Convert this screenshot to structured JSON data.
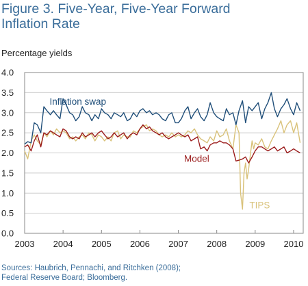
{
  "figure": {
    "title_line1": "Figure 3. Five-Year, Five-Year Forward",
    "title_line2": "Inflation Rate",
    "unit_label": "Percentage yields",
    "source_line1": "Sources: Haubrich, Pennachi, and Ritchken (2008);",
    "source_line2": "Federal Reserve Board; Bloomberg."
  },
  "chart_data": {
    "type": "line",
    "title": "Five-Year, Five-Year Forward Inflation Rate",
    "ylabel": "Percentage yields",
    "xlabel": "",
    "xlim": [
      2003,
      2010.25
    ],
    "ylim": [
      0,
      4.0
    ],
    "yticks": [
      "0.0",
      "0.5",
      "1.0",
      "1.5",
      "2.0",
      "2.5",
      "3.0",
      "3.5",
      "4.0"
    ],
    "xticks": [
      "2003",
      "2004",
      "2005",
      "2006",
      "2007",
      "2008",
      "2009",
      "2010"
    ],
    "grid": true,
    "colors": {
      "Inflation swap": "#1f4e79",
      "Model": "#9b1c1c",
      "TIPS": "#d9c27a",
      "grid": "#cccccc",
      "axis": "#888888"
    },
    "series": [
      {
        "name": "Inflation swap",
        "x": [
          2003.0,
          2003.08,
          2003.17,
          2003.25,
          2003.33,
          2003.42,
          2003.5,
          2003.58,
          2003.67,
          2003.75,
          2003.83,
          2003.92,
          2004.0,
          2004.08,
          2004.17,
          2004.25,
          2004.33,
          2004.42,
          2004.5,
          2004.58,
          2004.67,
          2004.75,
          2004.83,
          2004.92,
          2005.0,
          2005.08,
          2005.17,
          2005.25,
          2005.33,
          2005.42,
          2005.5,
          2005.58,
          2005.67,
          2005.75,
          2005.83,
          2005.92,
          2006.0,
          2006.08,
          2006.17,
          2006.25,
          2006.33,
          2006.42,
          2006.5,
          2006.58,
          2006.67,
          2006.75,
          2006.83,
          2006.92,
          2007.0,
          2007.08,
          2007.17,
          2007.25,
          2007.33,
          2007.42,
          2007.5,
          2007.58,
          2007.67,
          2007.75,
          2007.83,
          2007.92,
          2008.0,
          2008.08,
          2008.17,
          2008.25,
          2008.33,
          2008.42,
          2008.5,
          2008.58,
          2008.67,
          2008.75,
          2008.83,
          2008.92,
          2009.0,
          2009.08,
          2009.17,
          2009.25,
          2009.33,
          2009.42,
          2009.5,
          2009.58,
          2009.67,
          2009.75,
          2009.83,
          2009.92,
          2010.0,
          2010.08,
          2010.17
        ],
        "values": [
          2.22,
          2.28,
          2.25,
          2.75,
          2.7,
          2.5,
          3.15,
          3.05,
          2.95,
          3.05,
          2.95,
          2.85,
          3.35,
          3.2,
          3.0,
          2.95,
          2.8,
          2.9,
          3.15,
          3.0,
          2.95,
          2.8,
          2.95,
          2.85,
          3.1,
          3.0,
          2.95,
          2.85,
          3.0,
          2.95,
          2.9,
          3.0,
          2.8,
          2.85,
          3.0,
          2.9,
          3.05,
          3.1,
          3.0,
          3.05,
          2.95,
          3.0,
          2.95,
          2.85,
          2.8,
          2.95,
          3.0,
          2.75,
          2.75,
          2.85,
          3.05,
          3.15,
          2.85,
          3.0,
          3.1,
          2.9,
          2.8,
          2.95,
          3.25,
          3.0,
          2.9,
          2.85,
          2.8,
          3.1,
          2.95,
          3.0,
          2.7,
          3.05,
          3.3,
          2.75,
          3.15,
          3.05,
          3.15,
          3.25,
          2.85,
          3.1,
          3.25,
          3.5,
          3.1,
          2.9,
          3.1,
          3.2,
          3.35,
          3.1,
          2.95,
          3.25,
          3.05
        ]
      },
      {
        "name": "Model",
        "x": [
          2003.0,
          2003.08,
          2003.17,
          2003.25,
          2003.33,
          2003.42,
          2003.5,
          2003.58,
          2003.67,
          2003.75,
          2003.83,
          2003.92,
          2004.0,
          2004.08,
          2004.17,
          2004.25,
          2004.33,
          2004.42,
          2004.5,
          2004.58,
          2004.67,
          2004.75,
          2004.83,
          2004.92,
          2005.0,
          2005.08,
          2005.17,
          2005.25,
          2005.33,
          2005.42,
          2005.5,
          2005.58,
          2005.67,
          2005.75,
          2005.83,
          2005.92,
          2006.0,
          2006.08,
          2006.17,
          2006.25,
          2006.33,
          2006.42,
          2006.5,
          2006.58,
          2006.67,
          2006.75,
          2006.83,
          2006.92,
          2007.0,
          2007.08,
          2007.17,
          2007.25,
          2007.33,
          2007.42,
          2007.5,
          2007.58,
          2007.67,
          2007.75,
          2007.83,
          2007.92,
          2008.0,
          2008.08,
          2008.17,
          2008.25,
          2008.33,
          2008.42,
          2008.5,
          2008.58,
          2008.67,
          2008.75,
          2008.83,
          2008.92,
          2009.0,
          2009.08,
          2009.17,
          2009.25,
          2009.33,
          2009.42,
          2009.5,
          2009.58,
          2009.67,
          2009.75,
          2009.83,
          2009.92,
          2010.0,
          2010.08,
          2010.17
        ],
        "values": [
          2.15,
          2.2,
          2.05,
          2.3,
          2.45,
          2.15,
          2.5,
          2.45,
          2.55,
          2.5,
          2.45,
          2.4,
          2.6,
          2.55,
          2.4,
          2.35,
          2.4,
          2.35,
          2.5,
          2.4,
          2.45,
          2.5,
          2.4,
          2.5,
          2.55,
          2.45,
          2.35,
          2.4,
          2.5,
          2.4,
          2.45,
          2.5,
          2.35,
          2.45,
          2.5,
          2.45,
          2.6,
          2.7,
          2.6,
          2.65,
          2.55,
          2.5,
          2.45,
          2.5,
          2.4,
          2.35,
          2.4,
          2.45,
          2.5,
          2.45,
          2.4,
          2.45,
          2.3,
          2.35,
          2.4,
          2.1,
          2.15,
          2.05,
          2.2,
          2.25,
          2.25,
          2.3,
          2.25,
          2.25,
          2.2,
          2.1,
          1.8,
          1.82,
          1.85,
          1.9,
          1.75,
          1.9,
          2.05,
          2.15,
          2.15,
          2.1,
          2.05,
          2.1,
          2.15,
          2.05,
          2.1,
          2.15,
          2.0,
          2.05,
          2.1,
          2.05,
          2.0
        ]
      },
      {
        "name": "TIPS",
        "x": [
          2003.0,
          2003.08,
          2003.17,
          2003.25,
          2003.33,
          2003.42,
          2003.5,
          2003.58,
          2003.67,
          2003.75,
          2003.83,
          2003.92,
          2004.0,
          2004.08,
          2004.17,
          2004.25,
          2004.33,
          2004.42,
          2004.5,
          2004.58,
          2004.67,
          2004.75,
          2004.83,
          2004.92,
          2005.0,
          2005.08,
          2005.17,
          2005.25,
          2005.33,
          2005.42,
          2005.5,
          2005.58,
          2005.67,
          2005.75,
          2005.83,
          2005.92,
          2006.0,
          2006.08,
          2006.17,
          2006.25,
          2006.33,
          2006.42,
          2006.5,
          2006.58,
          2006.67,
          2006.75,
          2006.83,
          2006.92,
          2007.0,
          2007.08,
          2007.17,
          2007.25,
          2007.33,
          2007.42,
          2007.5,
          2007.58,
          2007.67,
          2007.75,
          2007.83,
          2007.92,
          2008.0,
          2008.08,
          2008.17,
          2008.25,
          2008.33,
          2008.42,
          2008.5,
          2008.58,
          2008.62,
          2008.67,
          2008.71,
          2008.75,
          2008.79,
          2008.83,
          2008.88,
          2008.92,
          2008.96,
          2009.0,
          2009.08,
          2009.17,
          2009.25,
          2009.33,
          2009.42,
          2009.5,
          2009.58,
          2009.67,
          2009.75,
          2009.83,
          2009.92,
          2010.0,
          2010.08,
          2010.17
        ],
        "values": [
          2.05,
          1.85,
          2.3,
          2.45,
          2.3,
          2.2,
          2.5,
          2.4,
          2.55,
          2.45,
          2.6,
          2.5,
          2.55,
          2.5,
          2.35,
          2.4,
          2.3,
          2.4,
          2.45,
          2.35,
          2.5,
          2.45,
          2.3,
          2.45,
          2.4,
          2.3,
          2.4,
          2.3,
          2.5,
          2.55,
          2.35,
          2.45,
          2.4,
          2.4,
          2.55,
          2.5,
          2.6,
          2.65,
          2.7,
          2.55,
          2.6,
          2.55,
          2.45,
          2.4,
          2.45,
          2.4,
          2.5,
          2.4,
          2.45,
          2.4,
          2.45,
          2.55,
          2.5,
          2.6,
          2.45,
          2.35,
          2.3,
          2.25,
          2.4,
          2.3,
          2.55,
          2.4,
          2.45,
          2.6,
          2.3,
          2.1,
          2.7,
          2.5,
          1.0,
          0.6,
          1.5,
          1.75,
          1.35,
          1.6,
          2.0,
          2.3,
          2.1,
          2.25,
          2.2,
          2.35,
          2.15,
          2.1,
          2.3,
          2.45,
          2.6,
          2.8,
          2.5,
          2.7,
          2.8,
          2.5,
          2.75,
          2.25
        ]
      }
    ],
    "annotations": [
      {
        "text": "Inflation swap",
        "x": 2003.65,
        "y": 3.2,
        "series": "Inflation swap"
      },
      {
        "text": "Model",
        "x": 2007.15,
        "y": 1.78,
        "series": "Model"
      },
      {
        "text": "TIPS",
        "x": 2008.85,
        "y": 0.62,
        "series": "TIPS"
      }
    ]
  }
}
